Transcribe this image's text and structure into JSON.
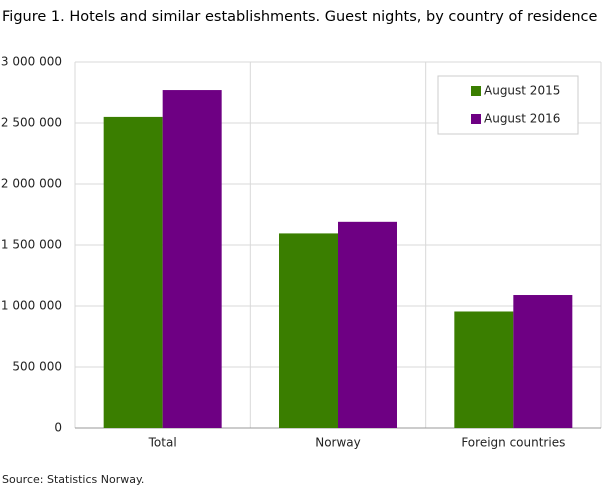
{
  "chart_data": {
    "type": "bar",
    "title": "Figure 1. Hotels and similar establishments. Guest nights, by country of residence",
    "categories": [
      "Total",
      "Norway",
      "Foreign countries"
    ],
    "series": [
      {
        "name": "August 2015",
        "color": "#3a7e00",
        "values": [
          2550000,
          1595000,
          955000
        ]
      },
      {
        "name": "August 2016",
        "color": "#6e0083",
        "values": [
          2770000,
          1690000,
          1090000
        ]
      }
    ],
    "ylim": [
      0,
      3000000
    ],
    "yticks": [
      0,
      {
        "value": 500000,
        "label": "500 000"
      },
      {
        "value": 1000000,
        "label": "1 000 000"
      },
      {
        "value": 1500000,
        "label": "1 500 000"
      },
      {
        "value": 2000000,
        "label": "2 000 000"
      },
      {
        "value": 2500000,
        "label": "2 500 000"
      },
      {
        "value": 3000000,
        "label": "3 000 000"
      }
    ],
    "grid": true,
    "legend": "top-right",
    "source": "Source: Statistics Norway."
  }
}
